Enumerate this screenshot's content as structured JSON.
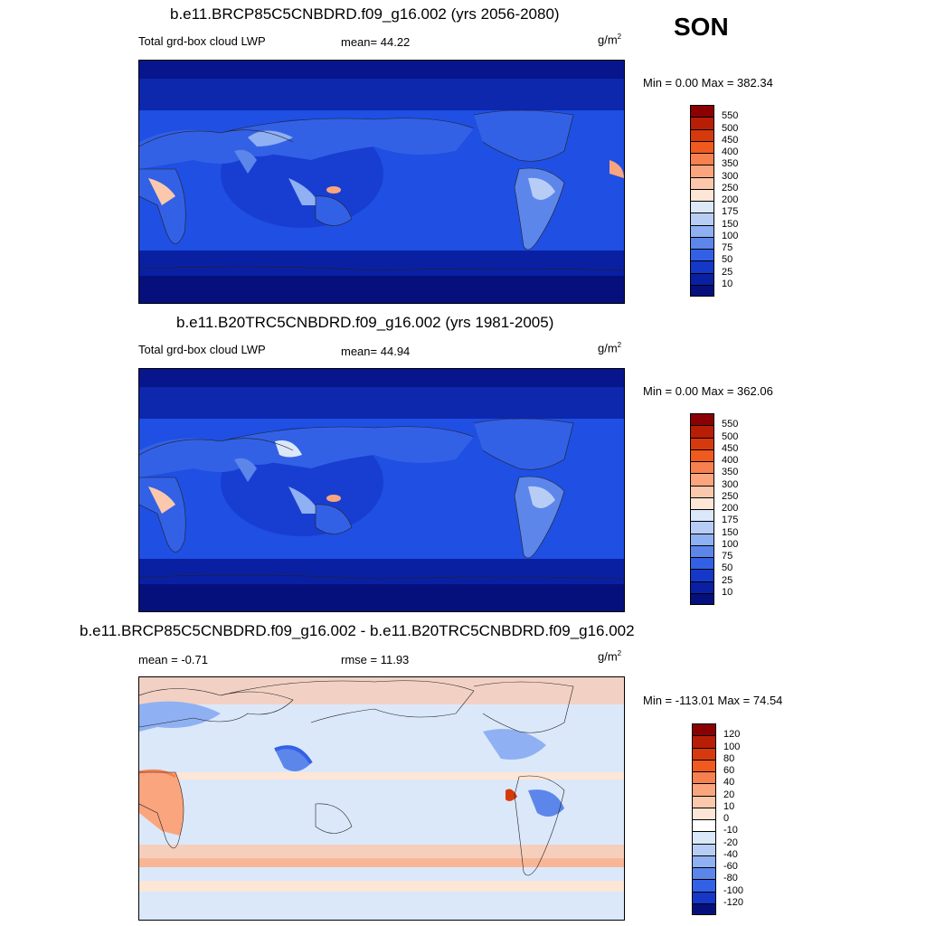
{
  "season": "SON",
  "panels": [
    {
      "id": "rcp85",
      "title": "b.e11.BRCP85C5CNBDRD.f09_g16.002 (yrs 2056-2080)",
      "left_label": "Total grd-box cloud LWP",
      "stat_label": "mean=",
      "stat_value": "44.22",
      "stat2_label": "",
      "stat2_value": "",
      "unit": "g/m",
      "unit_sup": "2",
      "minmax_text": "Min =    0.00 Max = 382.34",
      "colorbar": {
        "labels": [
          "550",
          "500",
          "450",
          "400",
          "350",
          "300",
          "250",
          "200",
          "175",
          "150",
          "100",
          "75",
          "50",
          "25",
          "10"
        ],
        "colors": [
          "#8b0000",
          "#b81e06",
          "#d63a0c",
          "#f05a1e",
          "#f7804f",
          "#fba57e",
          "#fcc8ac",
          "#fde6d6",
          "#dbe8fa",
          "#b8cdf6",
          "#8fb0f2",
          "#5d86eb",
          "#3361e6",
          "#1538c9",
          "#0a20a3",
          "#05107d"
        ]
      }
    },
    {
      "id": "b20tr",
      "title": "b.e11.B20TRC5CNBDRD.f09_g16.002 (yrs 1981-2005)",
      "left_label": "Total grd-box cloud LWP",
      "stat_label": "mean=",
      "stat_value": "44.94",
      "stat2_label": "",
      "stat2_value": "",
      "unit": "g/m",
      "unit_sup": "2",
      "minmax_text": "Min =    0.00 Max = 362.06",
      "colorbar": {
        "labels": [
          "550",
          "500",
          "450",
          "400",
          "350",
          "300",
          "250",
          "200",
          "175",
          "150",
          "100",
          "75",
          "50",
          "25",
          "10"
        ],
        "colors": [
          "#8b0000",
          "#b81e06",
          "#d63a0c",
          "#f05a1e",
          "#f7804f",
          "#fba57e",
          "#fcc8ac",
          "#fde6d6",
          "#dbe8fa",
          "#b8cdf6",
          "#8fb0f2",
          "#5d86eb",
          "#3361e6",
          "#1538c9",
          "#0a20a3",
          "#05107d"
        ]
      }
    },
    {
      "id": "diff",
      "title": "b.e11.BRCP85C5CNBDRD.f09_g16.002 - b.e11.B20TRC5CNBDRD.f09_g16.002",
      "left_label": "mean =  -0.71",
      "stat_label": "rmse =",
      "stat_value": "11.93",
      "unit": "g/m",
      "unit_sup": "2",
      "minmax_text": "Min = -113.01 Max =  74.54",
      "colorbar": {
        "labels": [
          "120",
          "100",
          "80",
          "60",
          "40",
          "20",
          "10",
          "0",
          "-10",
          "-20",
          "-40",
          "-60",
          "-80",
          "-100",
          "-120"
        ],
        "colors": [
          "#8b0000",
          "#b81e06",
          "#d63a0c",
          "#f05a1e",
          "#f7804f",
          "#fba57e",
          "#fcc8ac",
          "#fde6d6",
          "#ffffff",
          "#dbe8fa",
          "#b8cdf6",
          "#8fb0f2",
          "#5d86eb",
          "#3361e6",
          "#1538c9",
          "#05107d"
        ]
      }
    }
  ],
  "map_colors": {
    "ocean_mid": "#1f4fe3",
    "ocean_deep": "#0a20a3",
    "polar": "#05107d",
    "land_light": "#8fb0f2",
    "land_pale": "#dbe8fa",
    "hot": "#fba57e",
    "diff_bg": "#dbe8fa",
    "diff_pos": "#fcc8ac",
    "diff_pos2": "#fba57e",
    "diff_neg": "#8fb0f2",
    "diff_neg2": "#5d86eb"
  }
}
